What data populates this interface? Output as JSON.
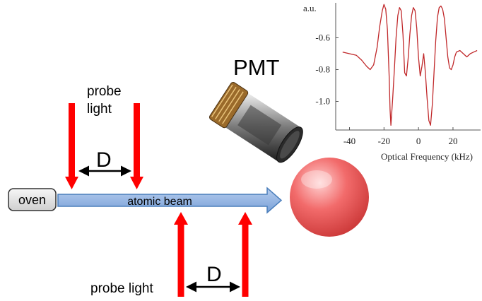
{
  "labels": {
    "probe_top": [
      "probe",
      "light"
    ],
    "probe_bottom": "probe light",
    "d_top": "D",
    "d_bottom": "D",
    "oven": "oven",
    "beam": "atomic beam",
    "pmt": "PMT"
  },
  "colors": {
    "probe": "#ff0000",
    "beam": "#8fb4e3",
    "beam_edge": "#4a7ebb",
    "oven_fill": "#e6e6e6",
    "sphere": "#f05a5a",
    "spectrum": "#c0282a"
  },
  "chart_data": {
    "type": "line",
    "xlabel": "Optical Frequency  (kHz)",
    "ylabel": "a.u.",
    "xlim": [
      -48,
      36
    ],
    "ylim": [
      -1.18,
      -0.38
    ],
    "xticks": [
      -40,
      -20,
      0,
      20
    ],
    "xtick_labels": [
      "-40",
      "-20",
      "0",
      "20"
    ],
    "yticks": [
      -0.6,
      -0.8,
      -1.0
    ],
    "ytick_labels": [
      "-0.6",
      "-0.8",
      "-1.0"
    ],
    "series": [
      {
        "x": [
          -44,
          -40,
          -36,
          -33,
          -30,
          -28,
          -26,
          -24,
          -22.5,
          -21,
          -20,
          -19,
          -18,
          -17,
          -16.5,
          -16,
          -15,
          -14,
          -13,
          -12,
          -11,
          -10,
          -9,
          -8,
          -7,
          -6,
          -5,
          -4,
          -3,
          -2,
          -1,
          0,
          1,
          2,
          3,
          4,
          5,
          6,
          7,
          8,
          9,
          10,
          11,
          12,
          13,
          14,
          15,
          16,
          17,
          18,
          19,
          20,
          21,
          22,
          24,
          26,
          28,
          30,
          32,
          34
        ],
        "y": [
          -0.69,
          -0.7,
          -0.71,
          -0.74,
          -0.78,
          -0.8,
          -0.77,
          -0.66,
          -0.53,
          -0.43,
          -0.39,
          -0.42,
          -0.55,
          -0.85,
          -1.05,
          -1.15,
          -0.99,
          -0.8,
          -0.6,
          -0.46,
          -0.41,
          -0.43,
          -0.58,
          -0.82,
          -0.84,
          -0.73,
          -0.58,
          -0.46,
          -0.41,
          -0.43,
          -0.54,
          -0.72,
          -0.84,
          -0.78,
          -0.7,
          -0.82,
          -0.98,
          -1.12,
          -1.15,
          -1.02,
          -0.82,
          -0.62,
          -0.47,
          -0.41,
          -0.4,
          -0.42,
          -0.48,
          -0.6,
          -0.72,
          -0.79,
          -0.8,
          -0.77,
          -0.72,
          -0.69,
          -0.68,
          -0.7,
          -0.72,
          -0.7,
          -0.69,
          -0.68
        ]
      }
    ]
  }
}
